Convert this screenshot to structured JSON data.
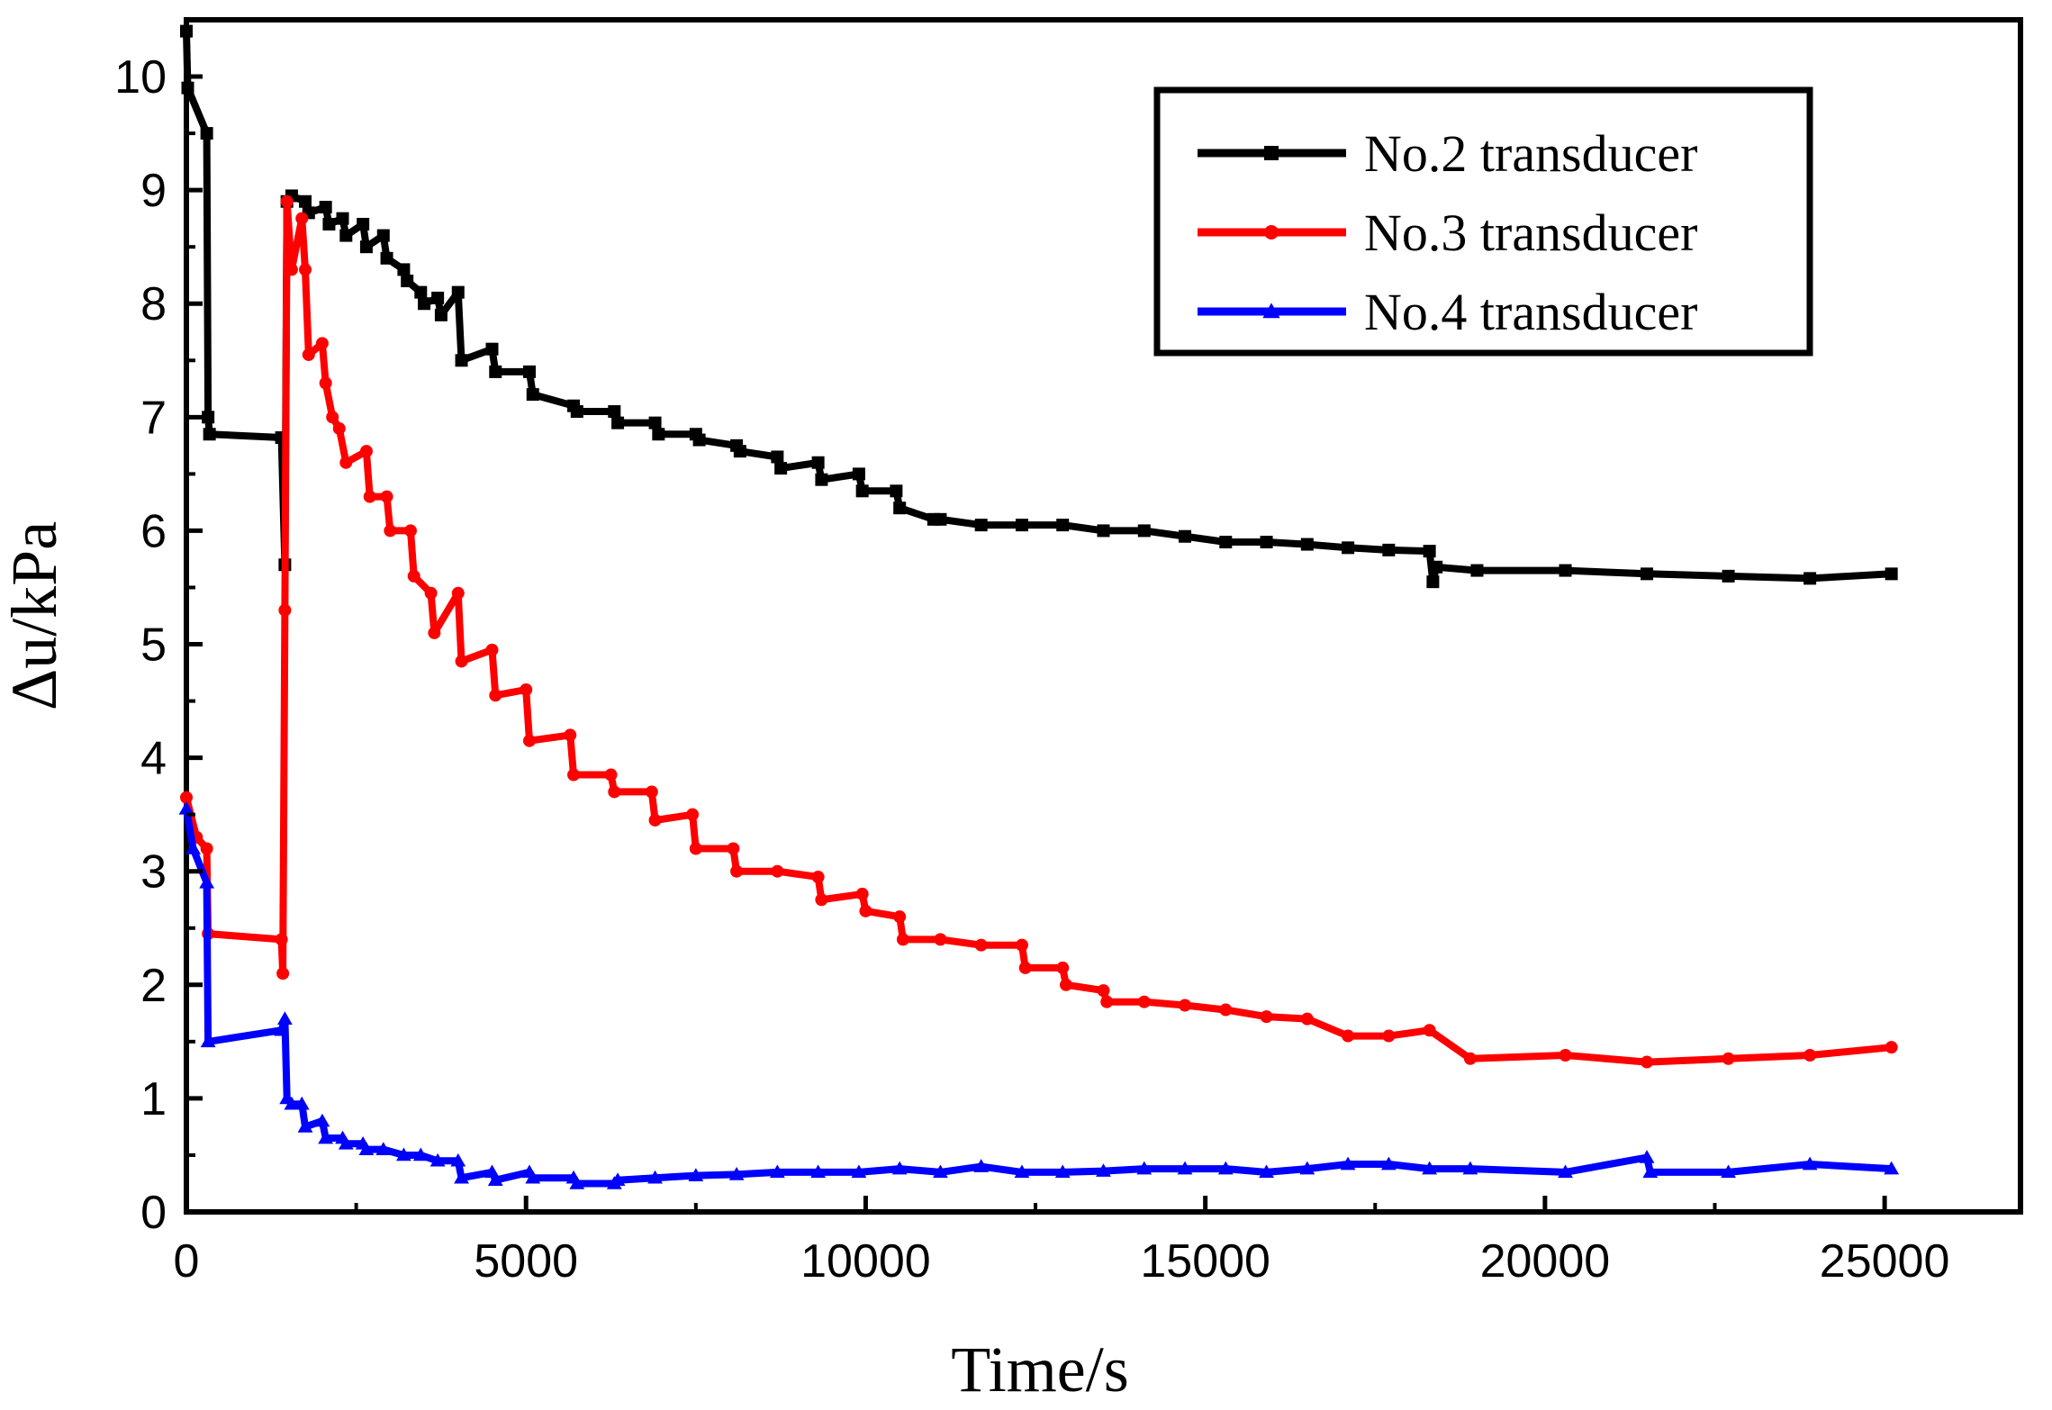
{
  "chart_data": {
    "type": "line",
    "title": "",
    "xlabel": "Time/s",
    "ylabel": "Δu/kPa",
    "xlim": [
      0,
      27000
    ],
    "ylim": [
      0,
      10.5
    ],
    "xticks": [
      "0",
      "5000",
      "10000",
      "15000",
      "20000",
      "25000"
    ],
    "xtick_values": [
      0,
      5000,
      10000,
      15000,
      20000,
      25000
    ],
    "yticks": [
      "0",
      "1",
      "2",
      "3",
      "4",
      "5",
      "6",
      "7",
      "8",
      "9",
      "10"
    ],
    "ytick_values": [
      0,
      1,
      2,
      3,
      4,
      5,
      6,
      7,
      8,
      9,
      10
    ],
    "grid": false,
    "legend_position": "top-right",
    "series": [
      {
        "name": "No.2 transducer",
        "color": "#000000",
        "marker": "square",
        "points": [
          [
            0,
            10.4
          ],
          [
            20,
            9.9
          ],
          [
            300,
            9.5
          ],
          [
            320,
            7.0
          ],
          [
            340,
            6.85
          ],
          [
            1400,
            6.82
          ],
          [
            1450,
            5.7
          ],
          [
            1480,
            8.9
          ],
          [
            1550,
            8.95
          ],
          [
            1750,
            8.9
          ],
          [
            1800,
            8.8
          ],
          [
            2050,
            8.85
          ],
          [
            2100,
            8.7
          ],
          [
            2300,
            8.75
          ],
          [
            2350,
            8.6
          ],
          [
            2600,
            8.7
          ],
          [
            2650,
            8.5
          ],
          [
            2900,
            8.6
          ],
          [
            2950,
            8.4
          ],
          [
            3200,
            8.3
          ],
          [
            3250,
            8.2
          ],
          [
            3450,
            8.1
          ],
          [
            3500,
            8.0
          ],
          [
            3700,
            8.05
          ],
          [
            3750,
            7.9
          ],
          [
            4000,
            8.1
          ],
          [
            4050,
            7.5
          ],
          [
            4500,
            7.6
          ],
          [
            4550,
            7.4
          ],
          [
            5050,
            7.4
          ],
          [
            5100,
            7.2
          ],
          [
            5700,
            7.1
          ],
          [
            5750,
            7.05
          ],
          [
            6300,
            7.05
          ],
          [
            6350,
            6.95
          ],
          [
            6900,
            6.95
          ],
          [
            6950,
            6.85
          ],
          [
            7500,
            6.85
          ],
          [
            7550,
            6.8
          ],
          [
            8100,
            6.75
          ],
          [
            8150,
            6.7
          ],
          [
            8700,
            6.65
          ],
          [
            8750,
            6.55
          ],
          [
            9300,
            6.6
          ],
          [
            9350,
            6.45
          ],
          [
            9900,
            6.5
          ],
          [
            9950,
            6.35
          ],
          [
            10450,
            6.35
          ],
          [
            10500,
            6.2
          ],
          [
            11000,
            6.1
          ],
          [
            11100,
            6.1
          ],
          [
            11700,
            6.05
          ],
          [
            12300,
            6.05
          ],
          [
            12900,
            6.05
          ],
          [
            13500,
            6.0
          ],
          [
            14100,
            6.0
          ],
          [
            14700,
            5.95
          ],
          [
            15300,
            5.9
          ],
          [
            15900,
            5.9
          ],
          [
            16500,
            5.88
          ],
          [
            17100,
            5.85
          ],
          [
            17700,
            5.83
          ],
          [
            18300,
            5.82
          ],
          [
            18350,
            5.55
          ],
          [
            18400,
            5.68
          ],
          [
            19000,
            5.65
          ],
          [
            20300,
            5.65
          ],
          [
            21500,
            5.62
          ],
          [
            22700,
            5.6
          ],
          [
            23900,
            5.58
          ],
          [
            25100,
            5.62
          ]
        ]
      },
      {
        "name": "No.3 transducer",
        "color": "#ff0000",
        "marker": "circle",
        "points": [
          [
            0,
            3.65
          ],
          [
            150,
            3.3
          ],
          [
            300,
            3.2
          ],
          [
            320,
            2.45
          ],
          [
            1400,
            2.4
          ],
          [
            1420,
            2.1
          ],
          [
            1450,
            5.3
          ],
          [
            1480,
            8.9
          ],
          [
            1550,
            8.3
          ],
          [
            1700,
            8.75
          ],
          [
            1750,
            8.3
          ],
          [
            1800,
            7.55
          ],
          [
            2000,
            7.65
          ],
          [
            2050,
            7.3
          ],
          [
            2150,
            7.0
          ],
          [
            2250,
            6.9
          ],
          [
            2350,
            6.6
          ],
          [
            2650,
            6.7
          ],
          [
            2700,
            6.3
          ],
          [
            2950,
            6.3
          ],
          [
            3000,
            6.0
          ],
          [
            3300,
            6.0
          ],
          [
            3350,
            5.6
          ],
          [
            3600,
            5.45
          ],
          [
            3650,
            5.1
          ],
          [
            4000,
            5.45
          ],
          [
            4050,
            4.85
          ],
          [
            4500,
            4.95
          ],
          [
            4550,
            4.55
          ],
          [
            5000,
            4.6
          ],
          [
            5050,
            4.15
          ],
          [
            5650,
            4.2
          ],
          [
            5700,
            3.85
          ],
          [
            6250,
            3.85
          ],
          [
            6300,
            3.7
          ],
          [
            6850,
            3.7
          ],
          [
            6900,
            3.45
          ],
          [
            7450,
            3.5
          ],
          [
            7500,
            3.2
          ],
          [
            8050,
            3.2
          ],
          [
            8100,
            3.0
          ],
          [
            8700,
            3.0
          ],
          [
            9300,
            2.95
          ],
          [
            9350,
            2.75
          ],
          [
            9950,
            2.8
          ],
          [
            10000,
            2.65
          ],
          [
            10500,
            2.6
          ],
          [
            10550,
            2.4
          ],
          [
            11100,
            2.4
          ],
          [
            11700,
            2.35
          ],
          [
            12300,
            2.35
          ],
          [
            12350,
            2.15
          ],
          [
            12900,
            2.15
          ],
          [
            12950,
            2.0
          ],
          [
            13500,
            1.95
          ],
          [
            13550,
            1.85
          ],
          [
            14100,
            1.85
          ],
          [
            14700,
            1.82
          ],
          [
            15300,
            1.78
          ],
          [
            15900,
            1.72
          ],
          [
            16500,
            1.7
          ],
          [
            17100,
            1.55
          ],
          [
            17700,
            1.55
          ],
          [
            18300,
            1.6
          ],
          [
            18900,
            1.35
          ],
          [
            20300,
            1.38
          ],
          [
            21500,
            1.32
          ],
          [
            22700,
            1.35
          ],
          [
            23900,
            1.38
          ],
          [
            25100,
            1.45
          ]
        ]
      },
      {
        "name": "No.4 transducer",
        "color": "#0000ff",
        "marker": "triangle",
        "points": [
          [
            0,
            3.55
          ],
          [
            100,
            3.2
          ],
          [
            300,
            2.9
          ],
          [
            320,
            1.5
          ],
          [
            1400,
            1.6
          ],
          [
            1450,
            1.7
          ],
          [
            1480,
            1.0
          ],
          [
            1550,
            0.95
          ],
          [
            1700,
            0.95
          ],
          [
            1750,
            0.75
          ],
          [
            2000,
            0.8
          ],
          [
            2050,
            0.65
          ],
          [
            2300,
            0.65
          ],
          [
            2350,
            0.6
          ],
          [
            2600,
            0.6
          ],
          [
            2650,
            0.55
          ],
          [
            2900,
            0.55
          ],
          [
            3200,
            0.5
          ],
          [
            3450,
            0.5
          ],
          [
            3700,
            0.45
          ],
          [
            4000,
            0.45
          ],
          [
            4050,
            0.3
          ],
          [
            4500,
            0.35
          ],
          [
            4550,
            0.28
          ],
          [
            5050,
            0.35
          ],
          [
            5100,
            0.3
          ],
          [
            5700,
            0.3
          ],
          [
            5750,
            0.25
          ],
          [
            6300,
            0.25
          ],
          [
            6350,
            0.28
          ],
          [
            6900,
            0.3
          ],
          [
            7500,
            0.32
          ],
          [
            8100,
            0.33
          ],
          [
            8700,
            0.35
          ],
          [
            9300,
            0.35
          ],
          [
            9900,
            0.35
          ],
          [
            10500,
            0.38
          ],
          [
            11100,
            0.35
          ],
          [
            11700,
            0.4
          ],
          [
            12300,
            0.35
          ],
          [
            12900,
            0.35
          ],
          [
            13500,
            0.36
          ],
          [
            14100,
            0.38
          ],
          [
            14700,
            0.38
          ],
          [
            15300,
            0.38
          ],
          [
            15900,
            0.35
          ],
          [
            16500,
            0.38
          ],
          [
            17100,
            0.42
          ],
          [
            17700,
            0.42
          ],
          [
            18300,
            0.38
          ],
          [
            18900,
            0.38
          ],
          [
            20300,
            0.35
          ],
          [
            21500,
            0.48
          ],
          [
            21550,
            0.35
          ],
          [
            22700,
            0.35
          ],
          [
            23900,
            0.42
          ],
          [
            25100,
            0.38
          ]
        ]
      }
    ]
  }
}
